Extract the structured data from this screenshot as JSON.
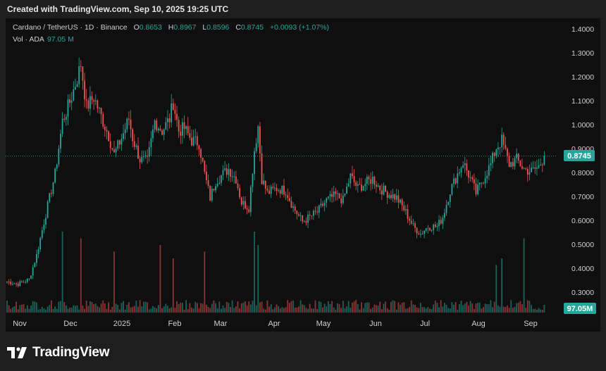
{
  "header": {
    "created": "Created with TradingView.com, Sep 10, 2025 19:25 UTC"
  },
  "legend": {
    "symbol": "Cardano / TetherUS · 1D · Binance",
    "open_label": "O",
    "open": "0.8653",
    "high_label": "H",
    "high": "0.8967",
    "low_label": "L",
    "low": "0.8596",
    "close_label": "C",
    "close": "0.8745",
    "change": "+0.0093 (+1.07%)",
    "volume_label": "Vol · ADA",
    "volume": "97.05 M"
  },
  "logo": {
    "text": "TradingView",
    "icon": "tradingview-logo-icon"
  },
  "colors": {
    "up": "#26a69a",
    "down": "#ef5350",
    "background": "#0f0f0f",
    "text": "#cfcfcf"
  },
  "chart_data": {
    "type": "candlestick",
    "title": "Cardano / TetherUS · 1D · Binance",
    "ylim": [
      0.2,
      1.42
    ],
    "y_ticks": [
      "1.4000",
      "1.3000",
      "1.2000",
      "1.1000",
      "1.0000",
      "0.9000",
      "0.8000",
      "0.7000",
      "0.6000",
      "0.5000",
      "0.4000",
      "0.3000"
    ],
    "x_ticks": [
      "Nov",
      "Dec",
      "2025",
      "Feb",
      "Mar",
      "Apr",
      "May",
      "Jun",
      "Jul",
      "Aug",
      "Sep"
    ],
    "last_price": "0.8745",
    "last_volume": "97.05M",
    "grid": false,
    "price_path": {
      "note": "approximate daily closes read from the chart, oldest first",
      "keypoints": [
        [
          0,
          0.35
        ],
        [
          6,
          0.34
        ],
        [
          12,
          0.36
        ],
        [
          16,
          0.46
        ],
        [
          20,
          0.6
        ],
        [
          26,
          0.8
        ],
        [
          30,
          1.02
        ],
        [
          34,
          1.1
        ],
        [
          38,
          1.2
        ],
        [
          40,
          1.26
        ],
        [
          43,
          1.08
        ],
        [
          47,
          1.12
        ],
        [
          51,
          1.04
        ],
        [
          55,
          0.96
        ],
        [
          58,
          0.88
        ],
        [
          62,
          0.95
        ],
        [
          66,
          1.03
        ],
        [
          68,
          0.95
        ],
        [
          72,
          0.86
        ],
        [
          76,
          0.85
        ],
        [
          80,
          1.02
        ],
        [
          84,
          0.98
        ],
        [
          88,
          1.03
        ],
        [
          90,
          1.1
        ],
        [
          93,
          0.98
        ],
        [
          96,
          0.99
        ],
        [
          100,
          0.94
        ],
        [
          104,
          0.93
        ],
        [
          107,
          0.8
        ],
        [
          110,
          0.7
        ],
        [
          113,
          0.77
        ],
        [
          117,
          0.8
        ],
        [
          120,
          0.82
        ],
        [
          124,
          0.78
        ],
        [
          127,
          0.68
        ],
        [
          131,
          0.66
        ],
        [
          134,
          0.9
        ],
        [
          136,
          1.0
        ],
        [
          138,
          0.78
        ],
        [
          141,
          0.72
        ],
        [
          146,
          0.74
        ],
        [
          151,
          0.73
        ],
        [
          155,
          0.66
        ],
        [
          160,
          0.6
        ],
        [
          164,
          0.62
        ],
        [
          168,
          0.64
        ],
        [
          173,
          0.69
        ],
        [
          178,
          0.71
        ],
        [
          182,
          0.69
        ],
        [
          186,
          0.79
        ],
        [
          190,
          0.74
        ],
        [
          194,
          0.76
        ],
        [
          198,
          0.78
        ],
        [
          202,
          0.74
        ],
        [
          206,
          0.72
        ],
        [
          211,
          0.7
        ],
        [
          216,
          0.64
        ],
        [
          220,
          0.58
        ],
        [
          224,
          0.55
        ],
        [
          228,
          0.58
        ],
        [
          233,
          0.58
        ],
        [
          236,
          0.62
        ],
        [
          240,
          0.73
        ],
        [
          244,
          0.8
        ],
        [
          247,
          0.85
        ],
        [
          251,
          0.78
        ],
        [
          254,
          0.72
        ],
        [
          258,
          0.78
        ],
        [
          262,
          0.84
        ],
        [
          265,
          0.91
        ],
        [
          268,
          0.94
        ],
        [
          272,
          0.84
        ],
        [
          276,
          0.86
        ],
        [
          280,
          0.82
        ],
        [
          284,
          0.81
        ],
        [
          288,
          0.83
        ],
        [
          291,
          0.8745
        ]
      ],
      "volume_range": [
        0.06,
        0.32
      ]
    }
  }
}
